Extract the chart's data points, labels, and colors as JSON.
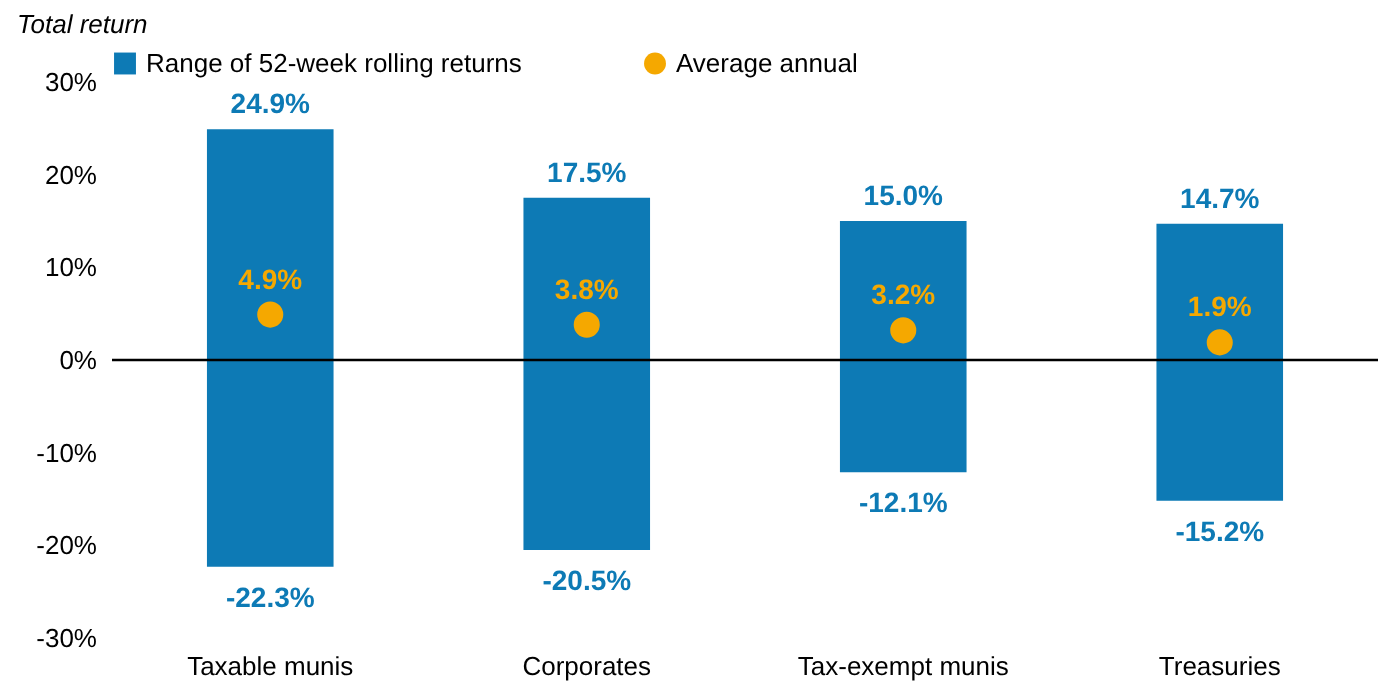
{
  "chart_data": {
    "type": "bar",
    "ylabel": "Total return",
    "categories": [
      "Taxable munis",
      "Corporates",
      "Tax-exempt munis",
      "Treasuries"
    ],
    "series": [
      {
        "name": "Range of 52-week rolling returns",
        "color": "#0d7ab5",
        "base": [
          -22.3,
          -20.5,
          -12.1,
          -15.2
        ],
        "values": [
          47.2,
          38.0,
          27.1,
          29.9
        ]
      },
      {
        "name": "Average annual",
        "type": "scatter",
        "color": "#f5a800",
        "x": [
          "Taxable munis",
          "Corporates",
          "Tax-exempt munis",
          "Treasuries"
        ],
        "values": [
          4.9,
          3.8,
          3.2,
          1.9
        ],
        "value_labels": [
          "4.9%",
          "3.8%",
          "3.2%",
          "1.9%"
        ]
      }
    ],
    "annotations": [
      {
        "text": "24.9%",
        "x": "Taxable munis",
        "y": 24.9
      },
      {
        "text": "-22.3%",
        "x": "Taxable munis",
        "y": -22.3
      },
      {
        "text": "17.5%",
        "x": "Corporates",
        "y": 17.5
      },
      {
        "text": "-20.5%",
        "x": "Corporates",
        "y": -20.5
      },
      {
        "text": "15.0%",
        "x": "Tax-exempt munis",
        "y": 15.0
      },
      {
        "text": "-12.1%",
        "x": "Tax-exempt munis",
        "y": -12.1
      },
      {
        "text": "14.7%",
        "x": "Treasuries",
        "y": 14.7
      },
      {
        "text": "-15.2%",
        "x": "Treasuries",
        "y": -15.2
      }
    ],
    "ylim": [
      -30,
      30
    ],
    "yticks": [
      {
        "value": -30,
        "label": "-30%"
      },
      {
        "value": -20,
        "label": "-20%"
      },
      {
        "value": -10,
        "label": "-10%"
      },
      {
        "value": 0,
        "label": "0%"
      },
      {
        "value": 10,
        "label": "10%"
      },
      {
        "value": 20,
        "label": "20%"
      },
      {
        "value": 30,
        "label": "30%"
      }
    ],
    "ref_lines": [
      {
        "axis": "y",
        "value": 0,
        "color": "#000000"
      }
    ],
    "grid": false,
    "legend": "top",
    "marker": "circle"
  }
}
